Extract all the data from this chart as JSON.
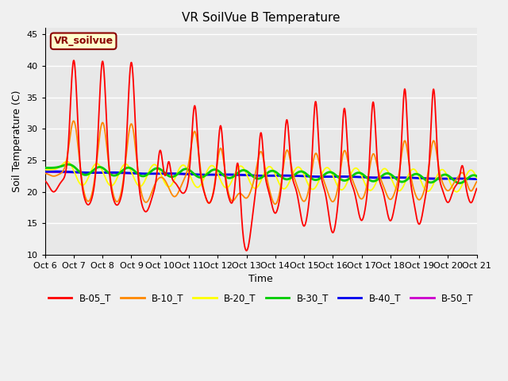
{
  "title": "VR SoilVue B Temperature",
  "xlabel": "Time",
  "ylabel": "Soil Temperature (C)",
  "xlim": [
    0,
    15
  ],
  "ylim": [
    10,
    46
  ],
  "yticks": [
    10,
    15,
    20,
    25,
    30,
    35,
    40,
    45
  ],
  "xtick_labels": [
    "Oct 6",
    "Oct 7",
    "Oct 8",
    "Oct 9",
    "Oct 10",
    "Oct 11",
    "Oct 12",
    "Oct 13",
    "Oct 14",
    "Oct 15",
    "Oct 16",
    "Oct 17",
    "Oct 18",
    "Oct 19",
    "Oct 20",
    "Oct 21"
  ],
  "series_colors": {
    "B-05_T": "#ff0000",
    "B-10_T": "#ff8800",
    "B-20_T": "#ffff00",
    "B-30_T": "#00cc00",
    "B-40_T": "#0000ee",
    "B-50_T": "#cc00cc"
  },
  "legend_label": "VR_soilvue",
  "plot_bg_color": "#e8e8e8",
  "title_fontsize": 11,
  "axis_fontsize": 9,
  "tick_fontsize": 8
}
